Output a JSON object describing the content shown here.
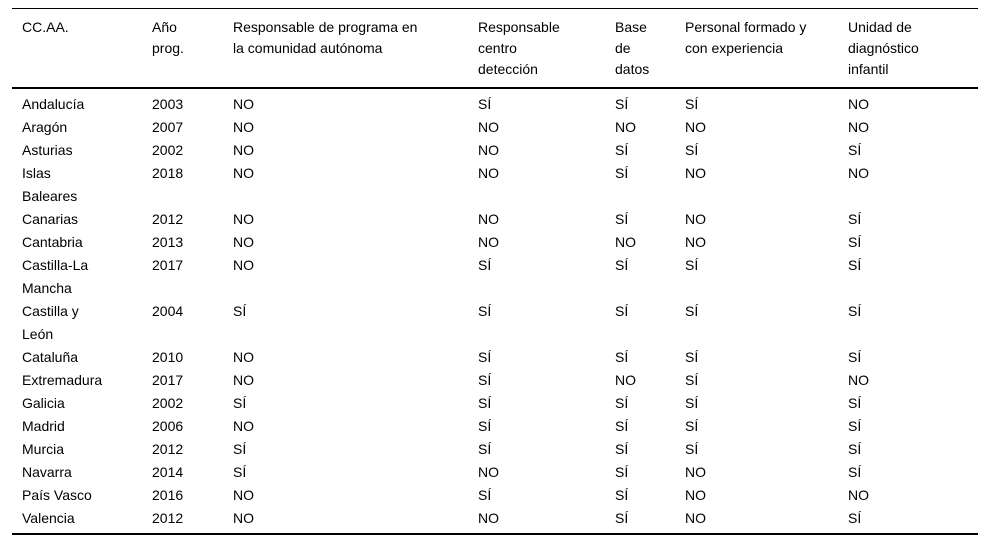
{
  "table": {
    "columns": [
      "CC.AA.",
      "Año\nprog.",
      "Responsable de programa en\nla comunidad autónoma",
      "Responsable\ncentro\ndetección",
      "Base\nde\ndatos",
      "Personal formado y\ncon experiencia",
      "Unidad de\ndiagnóstico\ninfantil"
    ],
    "rows": [
      [
        "Andalucía",
        "2003",
        "NO",
        "SÍ",
        "SÍ",
        "SÍ",
        "NO"
      ],
      [
        "Aragón",
        "2007",
        "NO",
        "NO",
        "NO",
        "NO",
        "NO"
      ],
      [
        "Asturias",
        "2002",
        "NO",
        "NO",
        "SÍ",
        "SÍ",
        "SÍ"
      ],
      [
        "Islas\nBaleares",
        "2018",
        "NO",
        "NO",
        "SÍ",
        "NO",
        "NO"
      ],
      [
        "Canarias",
        "2012",
        "NO",
        "NO",
        "SÍ",
        "NO",
        "SÍ"
      ],
      [
        "Cantabria",
        "2013",
        "NO",
        "NO",
        "NO",
        "NO",
        "SÍ"
      ],
      [
        "Castilla-La\nMancha",
        "2017",
        "NO",
        "SÍ",
        "SÍ",
        "SÍ",
        "SÍ"
      ],
      [
        "Castilla y\nLeón",
        "2004",
        "SÍ",
        "SÍ",
        "SÍ",
        "SÍ",
        "SÍ"
      ],
      [
        "Cataluña",
        "2010",
        "NO",
        "SÍ",
        "SÍ",
        "SÍ",
        "SÍ"
      ],
      [
        "Extremadura",
        "2017",
        "NO",
        "SÍ",
        "NO",
        "SÍ",
        "NO"
      ],
      [
        "Galicia",
        "2002",
        "SÍ",
        "SÍ",
        "SÍ",
        "SÍ",
        "SÍ"
      ],
      [
        "Madrid",
        "2006",
        "NO",
        "SÍ",
        "SÍ",
        "SÍ",
        "SÍ"
      ],
      [
        "Murcia",
        "2012",
        "SÍ",
        "SÍ",
        "SÍ",
        "SÍ",
        "SÍ"
      ],
      [
        "Navarra",
        "2014",
        "SÍ",
        "NO",
        "SÍ",
        "NO",
        "SÍ"
      ],
      [
        "País Vasco",
        "2016",
        "NO",
        "SÍ",
        "SÍ",
        "NO",
        "NO"
      ],
      [
        "Valencia",
        "2012",
        "NO",
        "NO",
        "SÍ",
        "NO",
        "SÍ"
      ]
    ]
  }
}
